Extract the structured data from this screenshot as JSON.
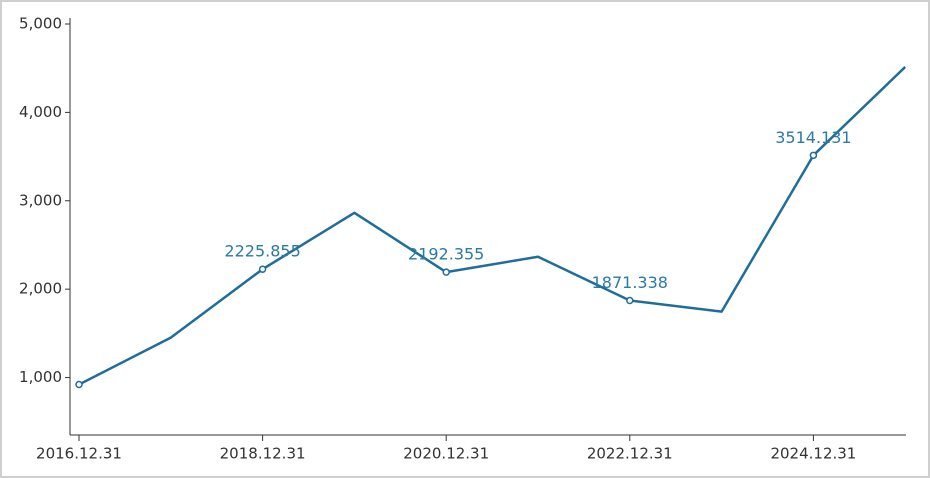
{
  "chart_data": {
    "type": "line",
    "categories": [
      "2016.12.31",
      null,
      "2018.12.31",
      null,
      "2020.12.31",
      null,
      "2022.12.31",
      null,
      "2024.12.31",
      null
    ],
    "series": [
      {
        "color": "#1f6e9a",
        "values": [
          921,
          1452,
          2225.855,
          2864,
          2192.355,
          2367,
          1871.338,
          1746,
          3514.131,
          4514
        ],
        "value_labels": [
          null,
          null,
          "2225.855",
          null,
          "2192.355",
          null,
          "1871.338",
          null,
          "3514.131",
          null
        ]
      }
    ],
    "ylim": [
      350,
      5000
    ],
    "yticks": [
      {
        "value": 1000,
        "label": "1,000"
      },
      {
        "value": 2000,
        "label": "2,000"
      },
      {
        "value": 3000,
        "label": "3,000"
      },
      {
        "value": 4000,
        "label": "4,000"
      },
      {
        "value": 5000,
        "label": "5,000"
      }
    ]
  }
}
